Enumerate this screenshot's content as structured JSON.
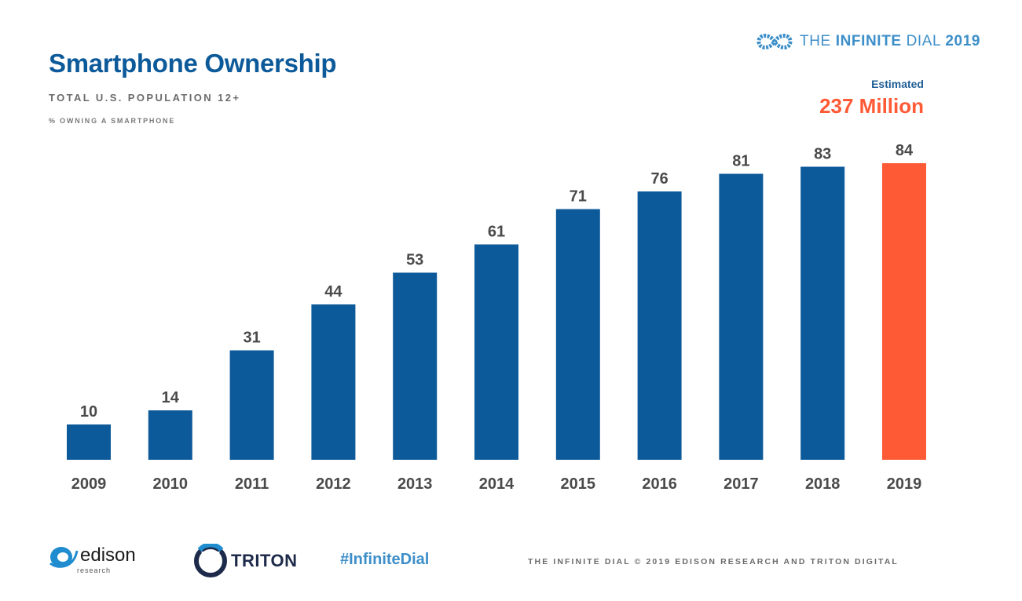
{
  "header": {
    "title": "Smartphone Ownership",
    "subtitle": "TOTAL U.S. POPULATION 12+",
    "measure": "% OWNING A SMARTPHONE"
  },
  "brand": {
    "word1": "THE",
    "word2": "INFINITE",
    "word3": "DIAL",
    "year": "2019",
    "icon": "infinity-icon"
  },
  "estimate": {
    "label": "Estimated",
    "value": "237 Million"
  },
  "colors": {
    "bar": "#0d5a9a",
    "highlight": "#ff5a36",
    "label": "#4a4a4a"
  },
  "chart_data": {
    "type": "bar",
    "title": "Smartphone Ownership",
    "subtitle": "TOTAL U.S. POPULATION 12+",
    "ylabel": "% OWNING A SMARTPHONE",
    "xlabel": "",
    "categories": [
      "2009",
      "2010",
      "2011",
      "2012",
      "2013",
      "2014",
      "2015",
      "2016",
      "2017",
      "2018",
      "2019"
    ],
    "values": [
      10,
      14,
      31,
      44,
      53,
      61,
      71,
      76,
      81,
      83,
      84
    ],
    "highlight_index": 10,
    "ylim": [
      0,
      85
    ],
    "grid": false,
    "legend": "none"
  },
  "footer": {
    "edison": "edison",
    "edison_sub": "research",
    "triton": "TRITON",
    "hashtag": "#InfiniteDial",
    "copyright": "THE INFINITE DIAL   © 2019 EDISON RESEARCH AND TRITON DIGITAL"
  }
}
